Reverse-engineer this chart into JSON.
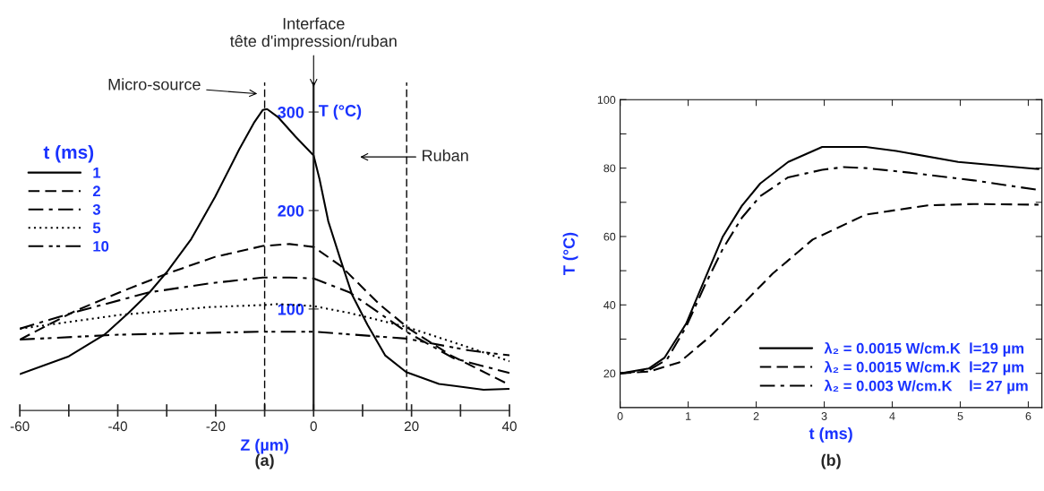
{
  "chart_data": [
    {
      "type": "line",
      "title": "(a)",
      "xlabel": "Z (µm)",
      "ylabel": "T (°C)",
      "legend_title": "t (ms)",
      "legend": "top left",
      "xlim": [
        -60,
        40
      ],
      "xticks": [
        -60,
        {
          "value": -50,
          "label": null
        },
        -40,
        {
          "value": -30,
          "label": null
        },
        -20,
        {
          "value": -10,
          "label": null
        },
        0,
        {
          "value": 10,
          "label": null
        },
        20,
        {
          "value": 30,
          "label": null
        },
        40
      ],
      "ylim": [
        -3,
        330
      ],
      "yticks": [
        100,
        200,
        300
      ],
      "grid": false,
      "series": [
        {
          "name": "1",
          "color": "#000000",
          "line_style": "solid",
          "x": [
            -60,
            -50,
            -42.7,
            -37.8,
            -33.5,
            -29.9,
            -25,
            -20.1,
            -15.2,
            -12.2,
            -10.4,
            -9.5,
            -7.3,
            -3.7,
            0,
            1.2,
            3,
            5.5,
            7.9,
            11,
            14.6,
            18.9,
            25.6,
            34.7,
            40
          ],
          "values": [
            34,
            52,
            74,
            96,
            117,
            138,
            171,
            214,
            262,
            289,
            302,
            303,
            295,
            275,
            256,
            232,
            189,
            150,
            114,
            84,
            53,
            36,
            24,
            18,
            19
          ]
        },
        {
          "name": "2",
          "color": "#000000",
          "line_style": "dashed",
          "x": [
            -60,
            -48.7,
            -39.6,
            -29.9,
            -20.1,
            -10.4,
            -4.9,
            0,
            5.5,
            13.4,
            19.5,
            28,
            40
          ],
          "values": [
            69,
            98,
            117,
            136,
            153,
            164,
            166,
            163,
            144,
            105,
            80,
            53,
            23
          ]
        },
        {
          "name": "3",
          "color": "#000000",
          "line_style": "dashdot",
          "x": [
            -60,
            -48.7,
            -33.5,
            -21.3,
            -10.4,
            -4.9,
            0,
            7.3,
            18.9,
            28.6,
            40
          ],
          "values": [
            80,
            97,
            117,
            126,
            132,
            132,
            131,
            117,
            77,
            50,
            35
          ]
        },
        {
          "name": "5",
          "color": "#000000",
          "line_style": "dotted",
          "x": [
            -60,
            -39.6,
            -21.3,
            -10.4,
            -7.3,
            0,
            7.3,
            18.9,
            31.7,
            40
          ],
          "values": [
            80,
            94,
            102,
            104,
            105,
            103,
            96,
            82,
            61,
            47
          ]
        },
        {
          "name": "10",
          "color": "#000000",
          "line_style": "dashdotdot",
          "x": [
            -60,
            -39.6,
            -10.4,
            0,
            18.9,
            31.7,
            40
          ],
          "values": [
            69,
            74,
            77,
            77,
            70,
            58,
            53
          ]
        }
      ],
      "ref_lines": [
        {
          "axis": "x",
          "value": -10,
          "line_style": "dashed"
        },
        {
          "axis": "x",
          "value": 0,
          "line_style": "solid"
        },
        {
          "axis": "x",
          "value": 19,
          "line_style": "dashed"
        }
      ],
      "annotations": [
        "Micro-source",
        {
          "text": "Interface\ntête d'impression/ruban",
          "x": 0,
          "y": 323
        },
        "Ruban"
      ]
    },
    {
      "type": "line",
      "title": "(b)",
      "xlabel": "t (ms)",
      "ylabel": "T (°C)",
      "legend": "bottom right",
      "xlim": [
        0,
        6.2
      ],
      "xticks": [
        0,
        1,
        2,
        3,
        4,
        5,
        6
      ],
      "ylim": [
        10,
        100
      ],
      "yticks": [
        {
          "value": 20,
          "label": "20"
        },
        {
          "value": 30,
          "label": null
        },
        40,
        {
          "value": 50,
          "label": null
        },
        60,
        {
          "value": 70,
          "label": null
        },
        80,
        {
          "value": 90,
          "label": null
        },
        100
      ],
      "grid": false,
      "series": [
        {
          "name": "λ₂ = 0.0015 W/cm.K  l=19 µm",
          "color": "#000000",
          "line_style": "solid",
          "x": [
            0,
            0.42,
            0.65,
            0.97,
            1.24,
            1.51,
            1.79,
            2.06,
            2.47,
            2.97,
            3.61,
            4.06,
            4.97,
            6.15
          ],
          "values": [
            20,
            21.4,
            24.5,
            34.5,
            47.3,
            60,
            69,
            75.5,
            81.8,
            86.2,
            86.2,
            85,
            81.8,
            79.7
          ]
        },
        {
          "name": "λ₂ = 0.0015 W/cm.K  l=27 µm",
          "color": "#000000",
          "line_style": "dashed",
          "x": [
            0,
            0.42,
            0.87,
            1.33,
            1.79,
            2.24,
            2.83,
            3.61,
            4.52,
            5.2,
            6.15
          ],
          "values": [
            20,
            20.5,
            23.2,
            30.9,
            40,
            49.1,
            59.1,
            66.4,
            69.1,
            69.5,
            69.3
          ]
        },
        {
          "name": "λ₂ = 0.003 W/cm.K    l= 27 µm",
          "color": "#000000",
          "line_style": "dashdot",
          "x": [
            0,
            0.42,
            0.69,
            0.97,
            1.24,
            1.51,
            1.79,
            2.06,
            2.47,
            2.97,
            3.29,
            3.61,
            4.29,
            5.2,
            6.15
          ],
          "values": [
            20,
            20.9,
            24.1,
            33.6,
            45.5,
            56.4,
            65.5,
            71.8,
            77.3,
            79.5,
            80.3,
            80,
            78.6,
            76.4,
            73.6
          ]
        }
      ]
    }
  ]
}
